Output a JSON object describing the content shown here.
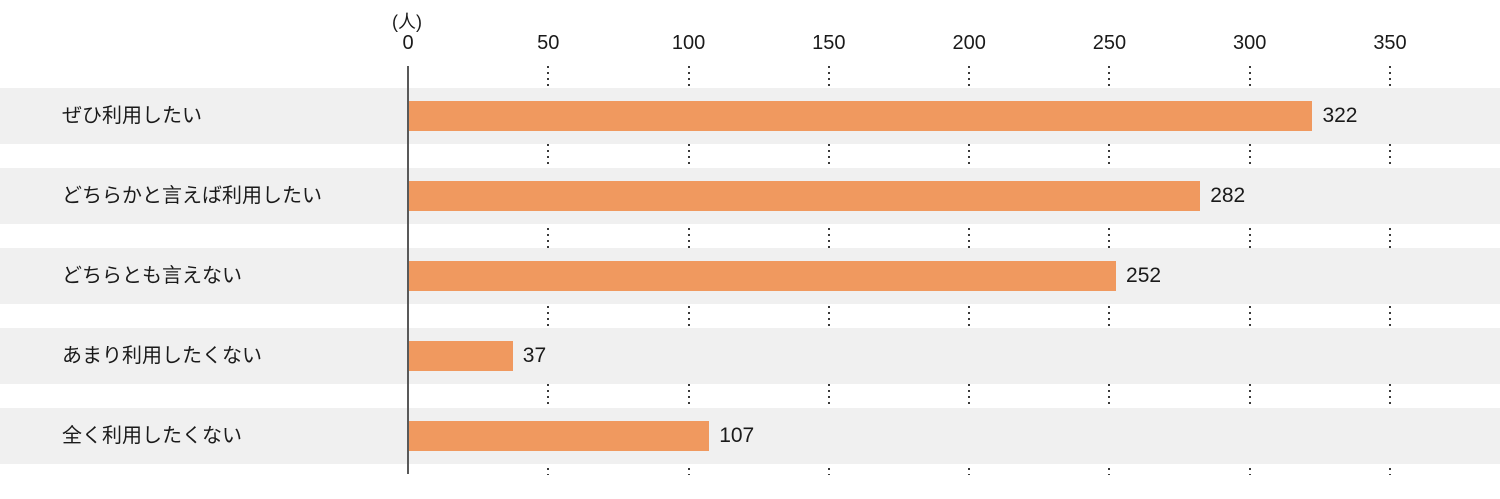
{
  "chart_data": {
    "type": "bar",
    "orientation": "horizontal",
    "title": "",
    "unit_label": "(人)",
    "categories": [
      "ぜひ利用したい",
      "どちらかと言えば利用したい",
      "どちらとも言えない",
      "あまり利用したくない",
      "全く利用したくない"
    ],
    "values": [
      322,
      282,
      252,
      37,
      107
    ],
    "x_ticks": [
      0,
      50,
      100,
      150,
      200,
      250,
      300,
      350
    ],
    "xlim": [
      0,
      350
    ],
    "xlabel": "",
    "ylabel": "",
    "legend": "none",
    "grid": "dotted-vertical-in-gaps",
    "bar_color": "#F0995F",
    "row_bg_color": "#F0F0F0",
    "axis_line_color": "#595959",
    "grid_dot_color": "#3A3A3A",
    "text_color": "#1A1A1A"
  }
}
